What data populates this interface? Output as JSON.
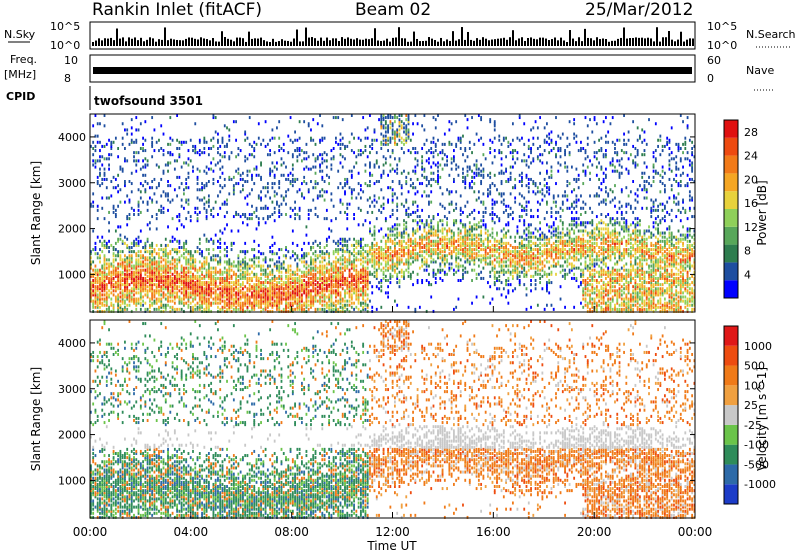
{
  "header": {
    "station": "Rankin Inlet (fitACF)",
    "beam": "Beam 02",
    "date": "25/Mar/2012"
  },
  "top_panels": {
    "nsky_label": "N.Sky",
    "nsky_ticks": [
      "10^5",
      "10^0"
    ],
    "nsearch_label": "N.Search",
    "nsearch_ticks": [
      "10^5",
      "10^0"
    ],
    "freq_label": "Freq.",
    "freq_unit": "[MHz]",
    "freq_ticks": [
      "10",
      "8"
    ],
    "nave_label": "Nave",
    "nave_ticks": [
      "60",
      "0"
    ],
    "cpid_label": "CPID",
    "cpid_value": "twofsound 3501"
  },
  "chart_data": [
    {
      "type": "heatmap",
      "name": "power",
      "ylabel": "Slant Range [km]",
      "yticks": [
        "4000",
        "3000",
        "2000",
        "1000"
      ],
      "ylim": [
        180,
        4500
      ],
      "xlabel": "Time UT",
      "xticks": [
        "00:00",
        "04:00",
        "08:00",
        "12:00",
        "16:00",
        "20:00",
        "00:00"
      ],
      "xlim_hours": [
        0,
        24
      ],
      "colorbar": {
        "label": "Power [dB]",
        "ticks": [
          "28",
          "24",
          "20",
          "16",
          "12",
          "8",
          "4"
        ],
        "range": [
          0,
          30
        ],
        "colors": [
          "#0000ff",
          "#1e4ea0",
          "#2e7d4f",
          "#58a75a",
          "#8fd05a",
          "#e8d23c",
          "#f5a623",
          "#f27a18",
          "#ee4a10",
          "#e01010"
        ]
      }
    },
    {
      "type": "heatmap",
      "name": "velocity",
      "ylabel": "Slant Range [km]",
      "yticks": [
        "4000",
        "3000",
        "2000",
        "1000"
      ],
      "ylim": [
        180,
        4500
      ],
      "xlabel": "Time UT",
      "xticks": [
        "00:00",
        "04:00",
        "08:00",
        "12:00",
        "16:00",
        "20:00",
        "00:00"
      ],
      "xlim_hours": [
        0,
        24
      ],
      "colorbar": {
        "label": "Velocity [m s^-1]",
        "ticks": [
          "1000",
          "500",
          "100",
          "25",
          "-25",
          "-100",
          "-500",
          "-1000"
        ],
        "colors": [
          "#1c3cc8",
          "#2d6aa8",
          "#2f8c5a",
          "#6bc44a",
          "#c8c8c8",
          "#f0a040",
          "#f07a18",
          "#ee4c10",
          "#e01818"
        ]
      }
    }
  ]
}
